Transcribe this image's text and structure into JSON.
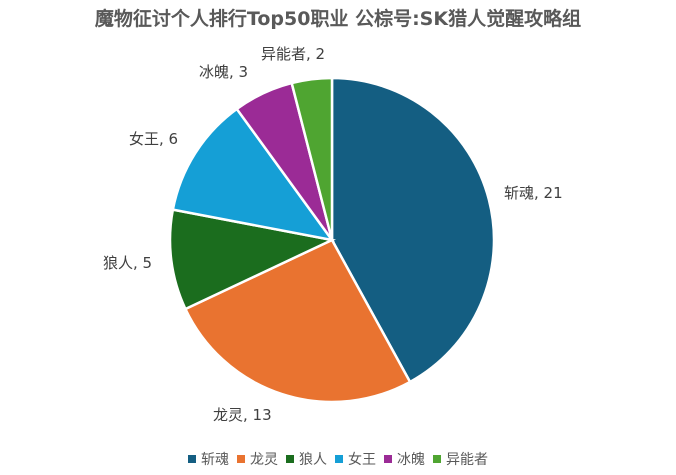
{
  "chart_data": {
    "type": "pie",
    "title": "魔物征讨个人排行Top50职业 公棕号:SK猎人觉醒攻略组",
    "categories": [
      "斩魂",
      "龙灵",
      "狼人",
      "女王",
      "冰魄",
      "异能者"
    ],
    "values": [
      21,
      13,
      5,
      6,
      3,
      2
    ],
    "colors": [
      "#145e82",
      "#e97330",
      "#1b6d1e",
      "#159fd6",
      "#9b2b96",
      "#4fa531"
    ],
    "data_labels": [
      "斩魂, 21",
      "龙灵, 13",
      "狼人, 5",
      "女王, 6",
      "冰魄, 3",
      "异能者, 2"
    ],
    "legend_position": "bottom",
    "start_angle_deg": 0,
    "direction": "clockwise"
  }
}
